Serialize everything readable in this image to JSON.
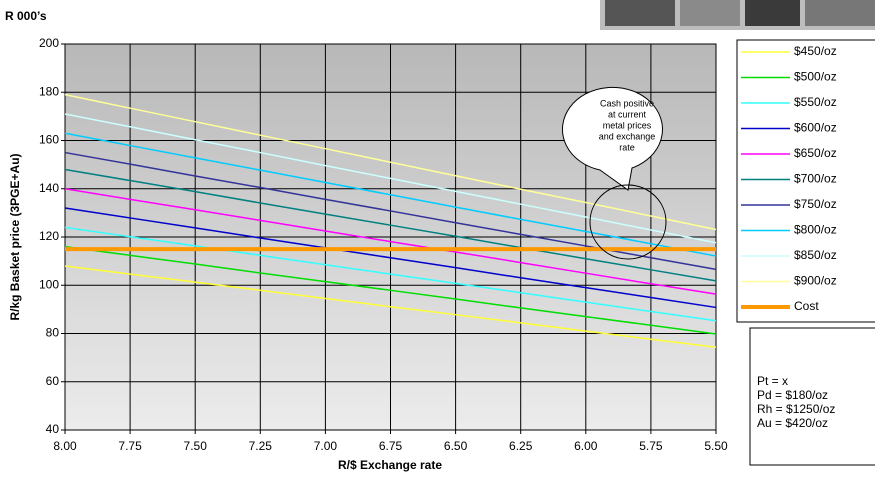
{
  "chart_data": {
    "type": "line",
    "unit_label": "R 000’s",
    "y_label": "R/kg Basket price (3PGE+Au)",
    "x_label": "R/$ Exchange rate",
    "x": [
      8,
      7.75,
      7.5,
      7.25,
      7,
      6.75,
      6.5,
      6.25,
      6,
      5.75,
      5.5
    ],
    "xlim": [
      8,
      5.5
    ],
    "xticks": [
      {
        "value": 8,
        "label": "8.00"
      },
      {
        "value": 7.75,
        "label": "7.75"
      },
      {
        "value": 7.5,
        "label": "7.50"
      },
      {
        "value": 7.25,
        "label": "7.25"
      },
      {
        "value": 7,
        "label": "7.00"
      },
      {
        "value": 6.75,
        "label": "6.75"
      },
      {
        "value": 6.5,
        "label": "6.50"
      },
      {
        "value": 6.25,
        "label": "6.25"
      },
      {
        "value": 6,
        "label": "6.00"
      },
      {
        "value": 5.75,
        "label": "5.75"
      },
      {
        "value": 5.5,
        "label": "5.50"
      }
    ],
    "ylim": [
      40,
      200
    ],
    "yticks": [
      40,
      60,
      80,
      100,
      120,
      140,
      160,
      180,
      200
    ],
    "grid": true,
    "legend": "right",
    "series": [
      {
        "name": "$450/oz",
        "color": "#ffff33",
        "values": [
          108,
          104.6,
          101.3,
          97.9,
          94.5,
          91.1,
          87.8,
          84.4,
          81.0,
          77.6,
          74.3
        ]
      },
      {
        "name": "$500/oz",
        "color": "#00dd00",
        "values": [
          116,
          112.4,
          108.8,
          105.1,
          101.5,
          97.9,
          94.3,
          90.6,
          87.0,
          83.4,
          79.8
        ]
      },
      {
        "name": "$550/oz",
        "color": "#33ffff",
        "values": [
          124,
          120.1,
          116.3,
          112.4,
          108.5,
          104.6,
          100.8,
          96.9,
          93.0,
          89.1,
          85.3
        ]
      },
      {
        "name": "$600/oz",
        "color": "#0000cc",
        "values": [
          132,
          127.9,
          123.8,
          119.6,
          115.5,
          111.4,
          107.3,
          103.1,
          99.0,
          94.9,
          90.8
        ]
      },
      {
        "name": "$650/oz",
        "color": "#ff00ff",
        "values": [
          140,
          135.6,
          131.3,
          126.9,
          122.5,
          118.1,
          113.8,
          109.4,
          105.0,
          100.6,
          96.3
        ]
      },
      {
        "name": "$700/oz",
        "color": "#008080",
        "values": [
          148,
          143.4,
          138.8,
          134.1,
          129.5,
          124.9,
          120.3,
          115.6,
          111.0,
          106.4,
          101.8
        ]
      },
      {
        "name": "$750/oz",
        "color": "#333399",
        "values": [
          155,
          150.2,
          145.3,
          140.5,
          135.6,
          130.8,
          125.9,
          121.1,
          116.3,
          111.4,
          106.6
        ]
      },
      {
        "name": "$800/oz",
        "color": "#00ccff",
        "values": [
          163,
          157.9,
          152.8,
          147.7,
          142.6,
          137.5,
          132.4,
          127.3,
          122.3,
          117.2,
          112.1
        ]
      },
      {
        "name": "$850/oz",
        "color": "#ccffff",
        "values": [
          171,
          165.7,
          160.3,
          155.0,
          149.6,
          144.3,
          138.9,
          133.6,
          128.3,
          122.9,
          117.6
        ]
      },
      {
        "name": "$900/oz",
        "color": "#ffff99",
        "values": [
          179,
          173.4,
          167.8,
          162.2,
          156.6,
          151.0,
          145.4,
          139.8,
          134.3,
          128.7,
          123.1
        ]
      },
      {
        "name": "Cost",
        "color": "#ff9900",
        "width": 4,
        "values": [
          115,
          115,
          115,
          115,
          115,
          115,
          115,
          115,
          115,
          115,
          115
        ]
      }
    ],
    "callout": [
      "Cash positive",
      "at  current",
      "metal prices",
      "and exchange",
      "rate"
    ],
    "info": [
      "Pt = x",
      "Pd = $180/oz",
      "Rh = $1250/oz",
      "Au = $420/oz"
    ]
  }
}
